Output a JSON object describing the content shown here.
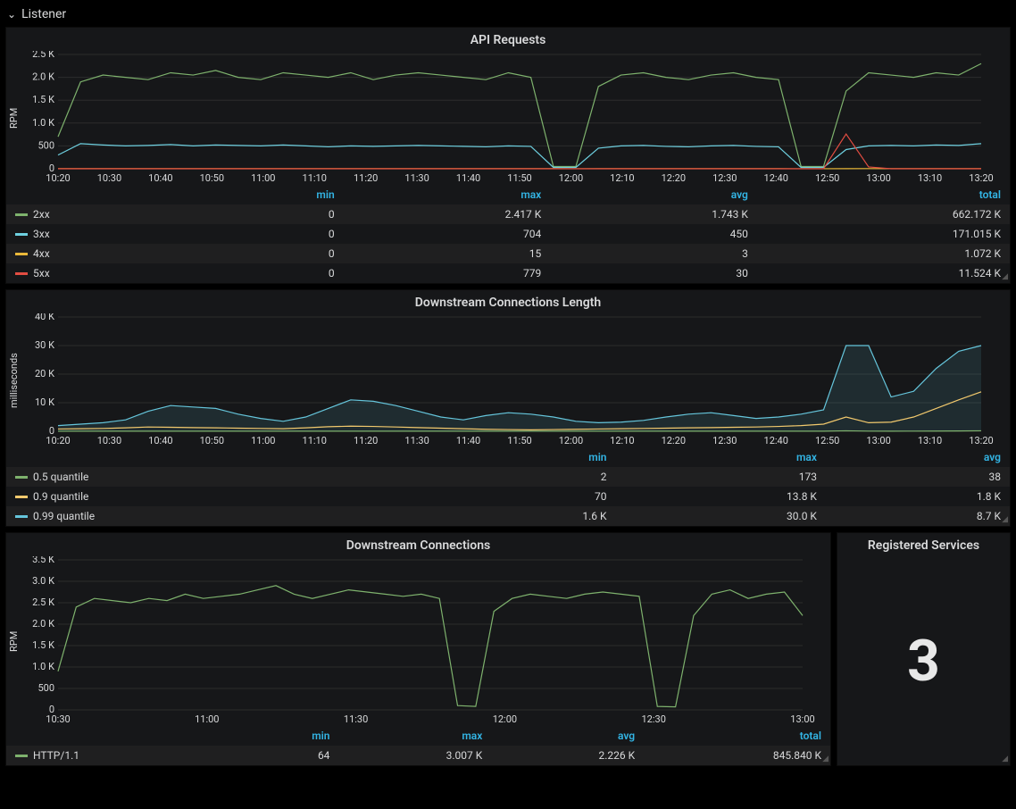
{
  "section": {
    "title": "Listener"
  },
  "colors": {
    "bg_panel": "#161719",
    "grid": "#2c2c2c",
    "text": "#d8d9da",
    "header_blue": "#33b5e5",
    "green": "#7eb26d",
    "blue": "#6ed0e0",
    "orange": "#eab839",
    "red": "#e24d42",
    "teal": "#65c5db",
    "yellow": "#f2c96d"
  },
  "time_axis": {
    "labels": [
      "10:20",
      "10:30",
      "10:40",
      "10:50",
      "11:00",
      "11:10",
      "11:20",
      "11:30",
      "11:40",
      "11:50",
      "12:00",
      "12:10",
      "12:20",
      "12:30",
      "12:40",
      "12:50",
      "13:00",
      "13:10",
      "13:20"
    ]
  },
  "panel1": {
    "title": "API Requests",
    "ylabel": "RPM",
    "ylim": [
      0,
      2500
    ],
    "yticks": [
      "0",
      "500",
      "1.0 K",
      "1.5 K",
      "2.0 K",
      "2.5 K"
    ],
    "series": {
      "2xx": {
        "color": "#7eb26d",
        "data": [
          700,
          1900,
          2050,
          2000,
          1950,
          2100,
          2050,
          2150,
          2000,
          1950,
          2100,
          2050,
          2000,
          2100,
          1950,
          2050,
          2100,
          2050,
          2000,
          1950,
          2100,
          2000,
          50,
          50,
          1800,
          2050,
          2100,
          2000,
          1950,
          2050,
          2100,
          2000,
          1950,
          50,
          50,
          1700,
          2100,
          2050,
          2000,
          2100,
          2050,
          2300
        ]
      },
      "3xx": {
        "color": "#6ed0e0",
        "data": [
          300,
          550,
          520,
          500,
          510,
          530,
          500,
          520,
          510,
          500,
          520,
          500,
          480,
          500,
          490,
          500,
          510,
          500,
          490,
          480,
          500,
          490,
          30,
          30,
          450,
          500,
          510,
          490,
          480,
          500,
          510,
          490,
          480,
          30,
          30,
          420,
          500,
          510,
          500,
          520,
          510,
          550
        ]
      },
      "4xx": {
        "color": "#eab839",
        "data": [
          2,
          3,
          4,
          3,
          2,
          3,
          4,
          3,
          2,
          3,
          4,
          3,
          2,
          3,
          2,
          3,
          4,
          3,
          2,
          3,
          4,
          3,
          2,
          1,
          3,
          4,
          3,
          2,
          3,
          4,
          3,
          2,
          3,
          1,
          1,
          3,
          4,
          3,
          2,
          3,
          4,
          3
        ]
      },
      "5xx": {
        "color": "#e24d42",
        "data": [
          0,
          0,
          0,
          0,
          0,
          0,
          0,
          0,
          0,
          0,
          0,
          0,
          0,
          0,
          0,
          0,
          0,
          0,
          0,
          0,
          0,
          0,
          0,
          0,
          0,
          0,
          0,
          0,
          0,
          0,
          0,
          0,
          0,
          0,
          0,
          760,
          40,
          0,
          0,
          0,
          0,
          0
        ]
      }
    },
    "legend_headers": [
      "min",
      "max",
      "avg",
      "total"
    ],
    "legend_rows": [
      {
        "label": "2xx",
        "color": "#7eb26d",
        "vals": [
          "0",
          "2.417 K",
          "1.743 K",
          "662.172 K"
        ]
      },
      {
        "label": "3xx",
        "color": "#6ed0e0",
        "vals": [
          "0",
          "704",
          "450",
          "171.015 K"
        ]
      },
      {
        "label": "4xx",
        "color": "#eab839",
        "vals": [
          "0",
          "15",
          "3",
          "1.072 K"
        ]
      },
      {
        "label": "5xx",
        "color": "#e24d42",
        "vals": [
          "0",
          "779",
          "30",
          "11.524 K"
        ]
      }
    ]
  },
  "panel2": {
    "title": "Downstream Connections Length",
    "ylabel": "milliseconds",
    "ylim": [
      0,
      40000
    ],
    "yticks": [
      "0",
      "10 K",
      "20 K",
      "30 K",
      "40 K"
    ],
    "series": {
      "q50": {
        "color": "#7eb26d",
        "data": [
          30,
          35,
          40,
          45,
          50,
          48,
          45,
          40,
          38,
          36,
          34,
          32,
          30,
          35,
          40,
          38,
          36,
          34,
          32,
          30,
          28,
          30,
          32,
          34,
          36,
          38,
          40,
          42,
          40,
          38,
          36,
          34,
          32,
          30,
          35,
          170,
          60,
          50,
          55,
          80,
          120,
          170
        ]
      },
      "q90": {
        "color": "#f2c96d",
        "data": [
          800,
          900,
          1000,
          1200,
          1500,
          1400,
          1300,
          1200,
          1100,
          1000,
          900,
          1200,
          1600,
          1800,
          1700,
          1500,
          1300,
          1100,
          900,
          700,
          600,
          500,
          600,
          700,
          800,
          900,
          1000,
          1100,
          1200,
          1300,
          1400,
          1500,
          1700,
          2000,
          2500,
          5000,
          3000,
          3200,
          5000,
          8000,
          11000,
          13800
        ]
      },
      "q99": {
        "color": "#65c5db",
        "data": [
          2000,
          2500,
          3000,
          4000,
          7000,
          9000,
          8500,
          8000,
          6000,
          4500,
          3500,
          5000,
          8000,
          11000,
          10500,
          9000,
          7000,
          5000,
          4000,
          5500,
          6500,
          6000,
          5000,
          3500,
          3000,
          3200,
          3800,
          5000,
          6000,
          6500,
          5500,
          4500,
          5000,
          6000,
          7500,
          30000,
          30000,
          12000,
          14000,
          22000,
          28000,
          30000
        ]
      }
    },
    "legend_headers": [
      "min",
      "max",
      "avg"
    ],
    "legend_rows": [
      {
        "label": "0.5 quantile",
        "color": "#7eb26d",
        "vals": [
          "2",
          "173",
          "38"
        ]
      },
      {
        "label": "0.9 quantile",
        "color": "#f2c96d",
        "vals": [
          "70",
          "13.8 K",
          "1.8 K"
        ]
      },
      {
        "label": "0.99 quantile",
        "color": "#65c5db",
        "vals": [
          "1.6 K",
          "30.0 K",
          "8.7 K"
        ]
      }
    ]
  },
  "panel3": {
    "title": "Downstream Connections",
    "ylabel": "RPM",
    "ylim": [
      0,
      3500
    ],
    "yticks": [
      "0",
      "500",
      "1.0 K",
      "1.5 K",
      "2.0 K",
      "2.5 K",
      "3.0 K",
      "3.5 K"
    ],
    "xlabels": [
      "10:30",
      "11:00",
      "11:30",
      "12:00",
      "12:30",
      "13:00"
    ],
    "series": {
      "http11": {
        "color": "#7eb26d",
        "data": [
          900,
          2400,
          2600,
          2550,
          2500,
          2600,
          2550,
          2700,
          2600,
          2650,
          2700,
          2800,
          2900,
          2700,
          2600,
          2700,
          2800,
          2750,
          2700,
          2650,
          2700,
          2600,
          100,
          80,
          2300,
          2600,
          2700,
          2650,
          2600,
          2700,
          2750,
          2700,
          2650,
          80,
          70,
          2200,
          2700,
          2800,
          2600,
          2700,
          2750,
          2200
        ]
      }
    },
    "legend_headers": [
      "min",
      "max",
      "avg",
      "total"
    ],
    "legend_rows": [
      {
        "label": "HTTP/1.1",
        "color": "#7eb26d",
        "vals": [
          "64",
          "3.007 K",
          "2.226 K",
          "845.840 K"
        ]
      }
    ]
  },
  "panel4": {
    "title": "Registered Services",
    "value": "3"
  }
}
